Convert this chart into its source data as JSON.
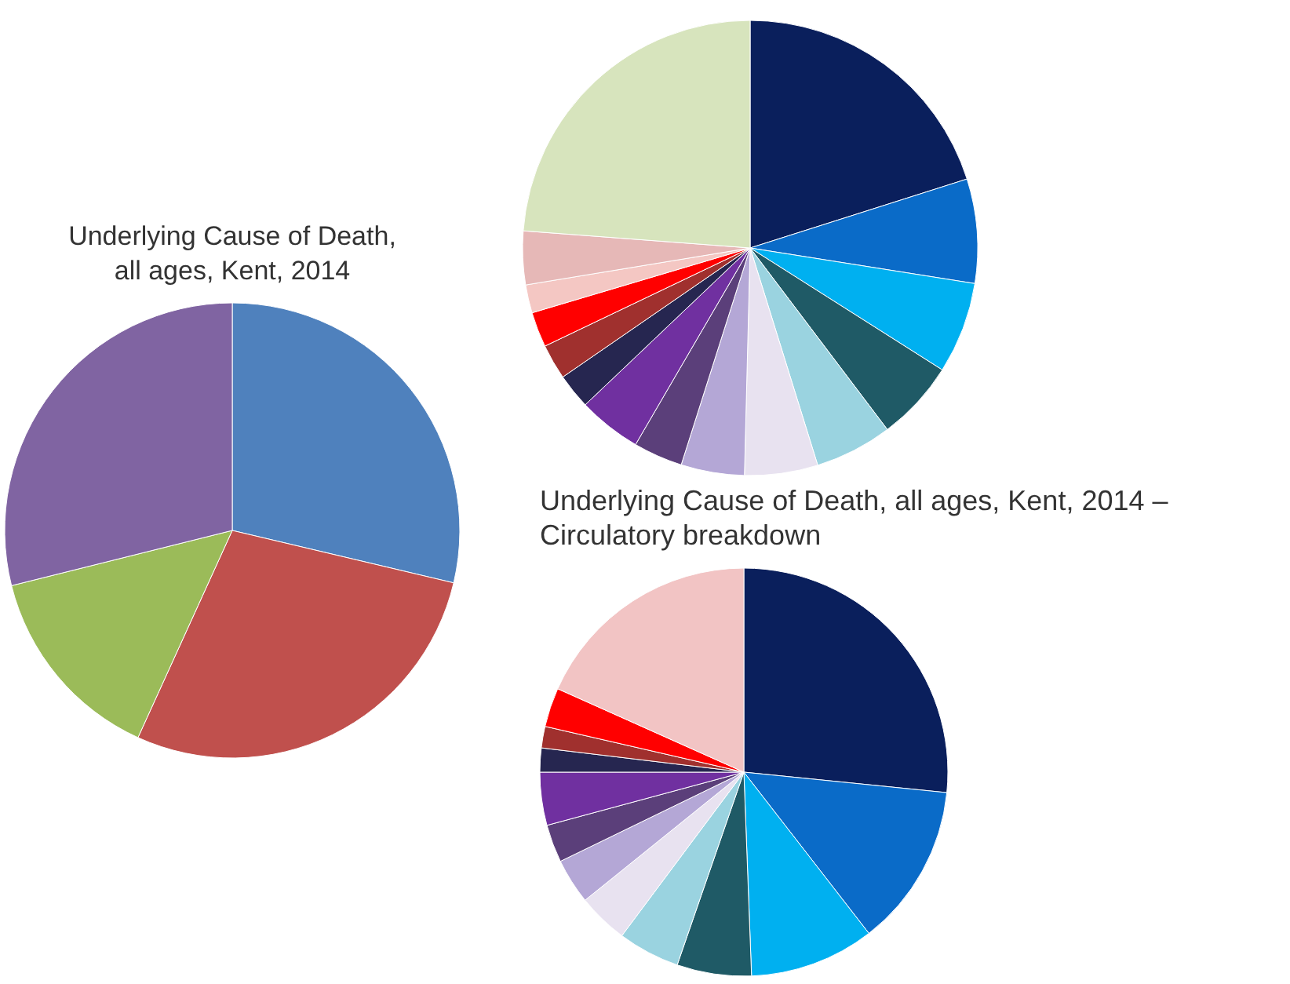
{
  "chart_data": [
    {
      "type": "pie",
      "title": "Underlying Cause of Death, all ages, Kent, 2014",
      "categories": [
        null,
        null,
        null,
        null
      ],
      "values": [
        28.7,
        28.1,
        14.3,
        28.9
      ],
      "colors": [
        "#4f81bd",
        "#c0504d",
        "#9bbb59",
        "#8064a2"
      ]
    },
    {
      "type": "pie",
      "categories": [
        null,
        null,
        null,
        null,
        null,
        null,
        null,
        null,
        null,
        null,
        null,
        null,
        null,
        null,
        null
      ],
      "values": [
        20.1,
        7.4,
        6.5,
        5.7,
        5.5,
        5.2,
        4.5,
        3.5,
        4.5,
        2.5,
        2.5,
        2.5,
        2.0,
        3.8,
        23.8
      ],
      "colors": [
        "#0a1f5c",
        "#0a6bc8",
        "#00b0f0",
        "#1f5a66",
        "#9ad3e0",
        "#e8e2f0",
        "#b4a7d6",
        "#5b3f7a",
        "#7030a0",
        "#262650",
        "#a0302e",
        "#ff0000",
        "#f4c7c3",
        "#e6b8b7",
        "#d7e4bd"
      ]
    },
    {
      "type": "pie",
      "title": "Underlying Cause of Death, all ages, Kent, 2014 – Circulatory breakdown",
      "categories": [
        null,
        null,
        null,
        null,
        null,
        null,
        null,
        null,
        null,
        null,
        null,
        null,
        null
      ],
      "values": [
        26.6,
        12.9,
        9.9,
        5.9,
        4.9,
        4.0,
        3.6,
        3.0,
        4.2,
        1.9,
        1.7,
        3.1,
        18.3
      ],
      "colors": [
        "#0a1f5c",
        "#0a6bc8",
        "#00b0f0",
        "#1f5a66",
        "#9ad3e0",
        "#e8e2f0",
        "#b4a7d6",
        "#5b3f7a",
        "#7030a0",
        "#262650",
        "#a0302e",
        "#ff0000",
        "#f2c4c4"
      ]
    }
  ]
}
